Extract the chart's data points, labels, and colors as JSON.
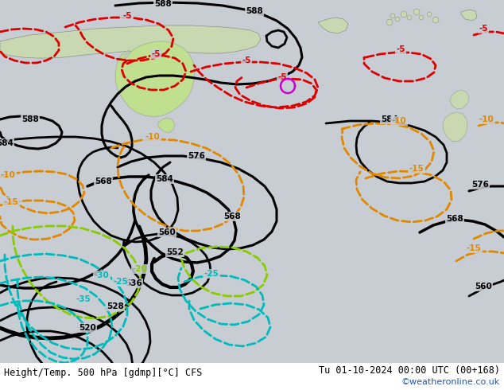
{
  "title_left": "Height/Temp. 500 hPa [gdmp][°C] CFS",
  "title_right": "Tu 01-10-2024 00:00 UTC (00+168)",
  "credit": "©weatheronline.co.uk",
  "bg_color": "#c8cdd4",
  "land_color": "#c8d8b0",
  "australia_color": "#c0e090",
  "sea_color": "#c8cdd4",
  "c_height": "#000000",
  "c_red": "#dd0000",
  "c_orange": "#e08800",
  "c_cyan": "#00bbbb",
  "c_green": "#88cc00",
  "c_magenta": "#cc00cc"
}
